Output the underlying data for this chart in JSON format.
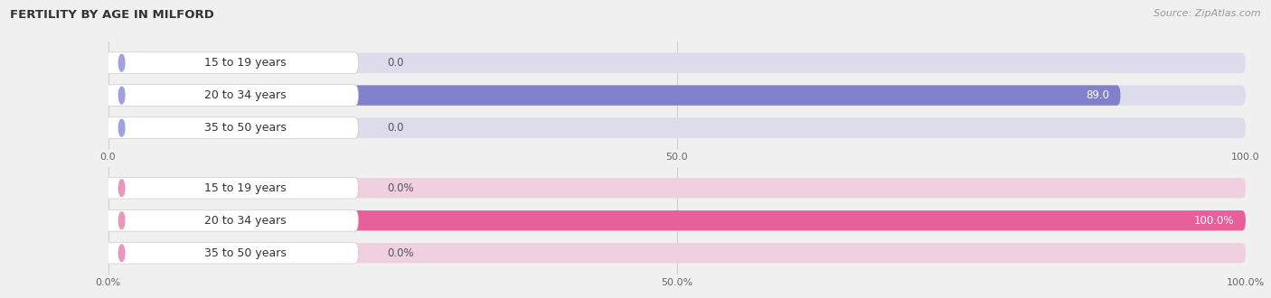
{
  "title": "FERTILITY BY AGE IN MILFORD",
  "source": "Source: ZipAtlas.com",
  "top_chart": {
    "categories": [
      "15 to 19 years",
      "20 to 34 years",
      "35 to 50 years"
    ],
    "values": [
      0.0,
      89.0,
      0.0
    ],
    "max_value": 100.0,
    "bar_color": "#8080cc",
    "bar_bg_color": "#dcdcec",
    "label_cap_color": "#a0a0dd",
    "label_color": "#ffffff",
    "label_outside_color": "#555555",
    "x_ticks": [
      0.0,
      50.0,
      100.0
    ],
    "x_tick_labels": [
      "0.0",
      "50.0",
      "100.0"
    ]
  },
  "bottom_chart": {
    "categories": [
      "15 to 19 years",
      "20 to 34 years",
      "35 to 50 years"
    ],
    "values": [
      0.0,
      100.0,
      0.0
    ],
    "max_value": 100.0,
    "bar_color": "#e8609a",
    "bar_bg_color": "#f0d0e0",
    "label_cap_color": "#e898bc",
    "label_color": "#ffffff",
    "label_outside_color": "#555555",
    "x_ticks": [
      0.0,
      50.0,
      100.0
    ],
    "x_tick_labels": [
      "0.0%",
      "50.0%",
      "100.0%"
    ]
  },
  "bg_color": "#f0f0f0",
  "title_fontsize": 9.5,
  "source_fontsize": 8,
  "label_fontsize": 8.5,
  "tick_fontsize": 8,
  "cat_fontsize": 9
}
